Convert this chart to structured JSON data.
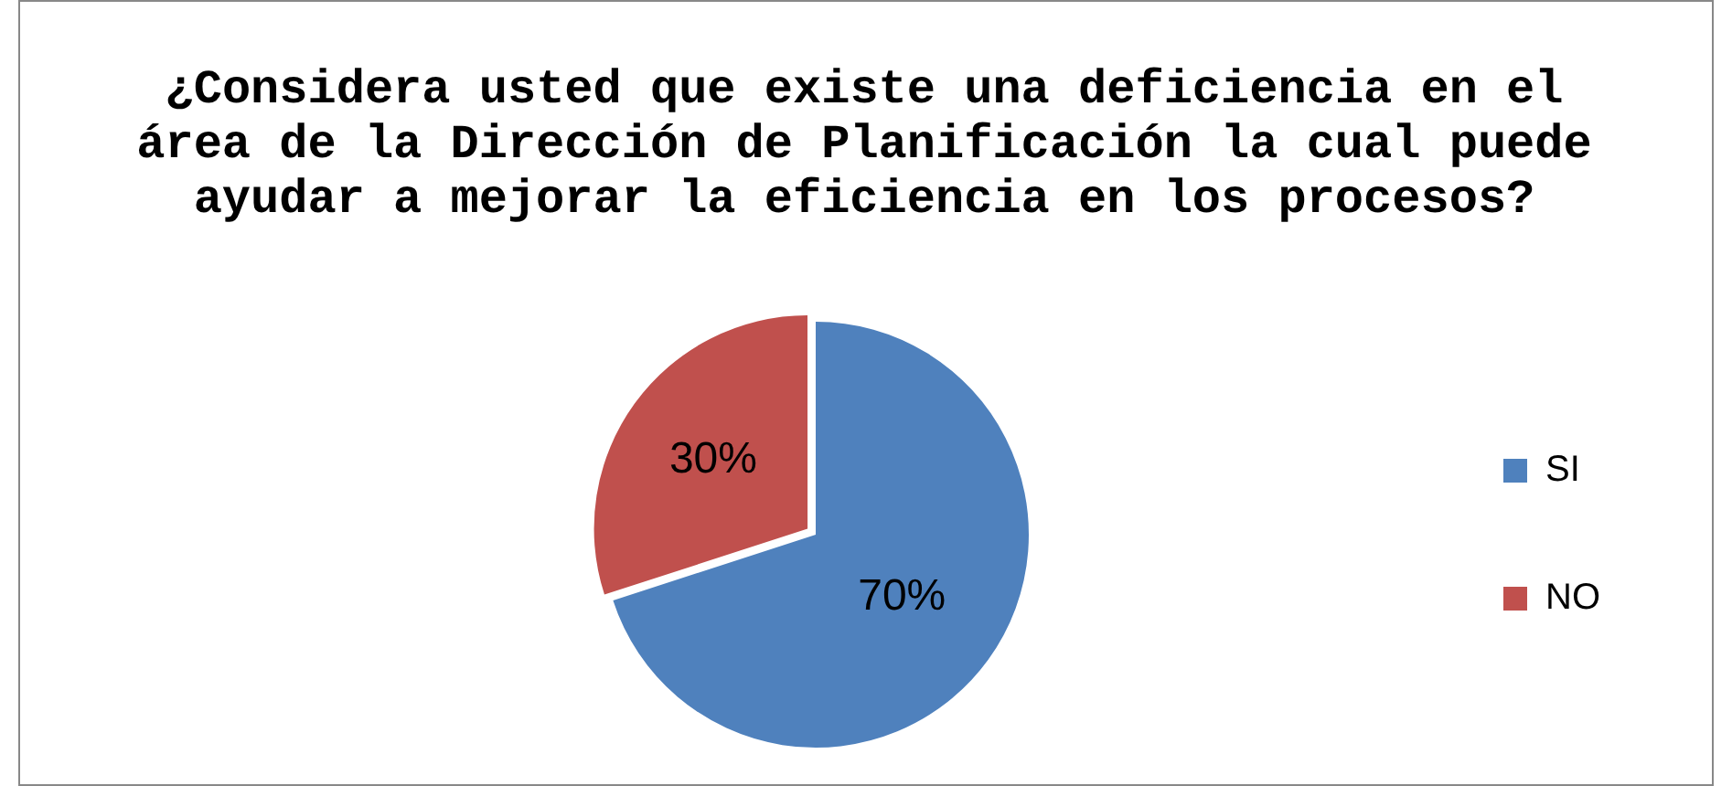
{
  "chart_data": {
    "type": "pie",
    "title": "¿Considera usted que existe una deficiencia en el área de la Dirección de Planificación la cual puede ayudar a mejorar la eficiencia en los procesos?",
    "categories": [
      "SI",
      "NO"
    ],
    "values": [
      70,
      30
    ],
    "colors": [
      "#4f81bd",
      "#c0504d"
    ],
    "value_labels": [
      "70%",
      "30%"
    ],
    "legend": "right"
  }
}
